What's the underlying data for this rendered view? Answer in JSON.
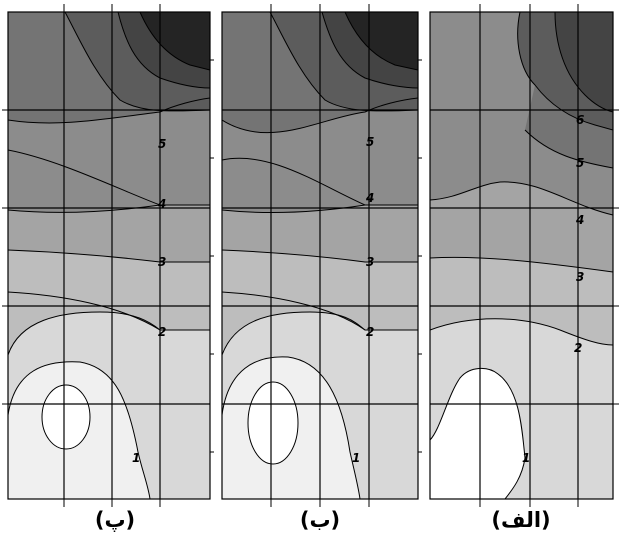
{
  "figure": {
    "panels": [
      {
        "caption": "(پ)",
        "contour_labels": [
          "1",
          "2",
          "3",
          "4",
          "5"
        ]
      },
      {
        "caption": "(ب)",
        "contour_labels": [
          "1",
          "2",
          "3",
          "4",
          "5"
        ]
      },
      {
        "caption": "(الف)",
        "contour_labels": [
          "1",
          "2",
          "3",
          "4",
          "5",
          "6"
        ]
      }
    ],
    "fill_levels": [
      "#f0f0f0",
      "#d8d8d8",
      "#bdbdbd",
      "#a4a4a4",
      "#8c8c8c",
      "#747474",
      "#5c5c5c",
      "#444444",
      "#242424"
    ]
  }
}
